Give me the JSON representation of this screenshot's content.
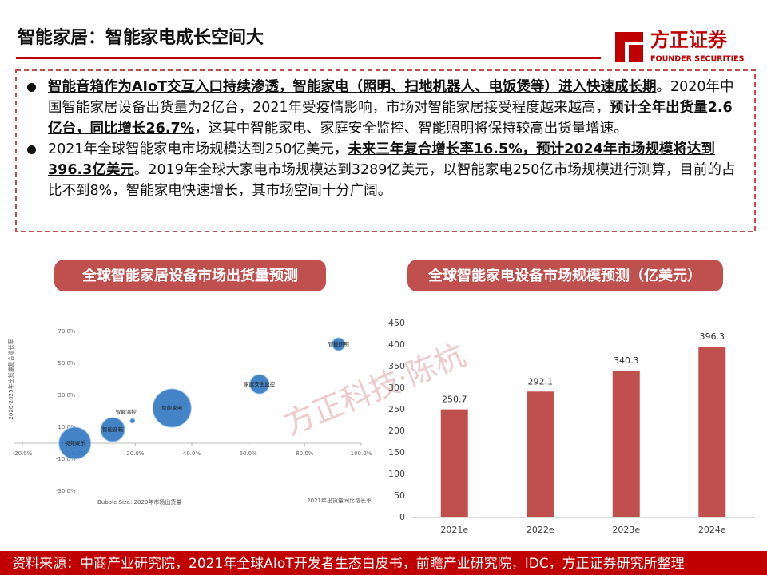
{
  "header": {
    "title": "智能家居：智能家电成长空间大",
    "logo_name": "方正证券",
    "logo_subtitle": "FOUNDER SECURITIES"
  },
  "bullets": [
    {
      "runs": [
        {
          "text": "智能音箱作为AIoT交互入口持续渗透，智能家电（照明、扫地机器人、电饭煲等）进入快速成长期",
          "bold": true
        },
        {
          "text": "。2020年中国智能家居设备出货量为2亿台，2021年受疫情影响，市场对智能家居接受程度越来越高，",
          "bold": false
        },
        {
          "text": "预计全年出货量2.6亿台，同比增长26.7%",
          "bold": true
        },
        {
          "text": "，这其中智能家电、家庭安全监控、智能照明将保持较高出货量增速。",
          "bold": false
        }
      ]
    },
    {
      "runs": [
        {
          "text": "2021年全球智能家电市场规模达到250亿美元，",
          "bold": false
        },
        {
          "text": "未来三年复合增长率16.5%，预计2024年市场规模将达到396.3亿美元",
          "bold": true
        },
        {
          "text": "。2019年全球大家电市场规模达到3289亿美元，以智能家电250亿市场规模进行测算，目前的占比不到8%，智能家电快速增长，其市场空间十分广阔。",
          "bold": false
        }
      ]
    }
  ],
  "watermark": "方正科技·陈杭",
  "source": "资料来源：中商产业研究院，2021年全球AIoT开发者生态白皮书，前瞻产业研究院，IDC，方正证券研究所整理",
  "chart_data": [
    {
      "type": "bubble",
      "title": "全球智能家居设备市场出货量预测",
      "x_label": "2021年出货量同比增长率",
      "y_label": "2020-2025年出货量复合增长率",
      "size_label": "Bubble Size: 2020年市场出货量",
      "color": "#2f75c0",
      "points": [
        {
          "name": "视频娱乐",
          "x": -1.4,
          "y": 0,
          "size": 400
        },
        {
          "name": "智能音箱",
          "x": 12,
          "y": 8.5,
          "size": 225
        },
        {
          "name": "智能温控",
          "x": 19,
          "y": 14,
          "size": 9
        },
        {
          "name": "智能家电",
          "x": 33,
          "y": 22,
          "size": 576
        },
        {
          "name": "家庭安全监控",
          "x": 64,
          "y": 37,
          "size": 144
        },
        {
          "name": "智能照明",
          "x": 92,
          "y": 62,
          "size": 64
        }
      ],
      "xlim": [
        -20,
        100
      ],
      "xticks": [
        {
          "value": -20,
          "label": "-20.0%"
        },
        {
          "value": 0,
          "label": "0.0%"
        },
        {
          "value": 20,
          "label": "20.0%"
        },
        {
          "value": 40,
          "label": "40.0%"
        },
        {
          "value": 60,
          "label": "60.0%"
        },
        {
          "value": 80,
          "label": "80.0%"
        },
        {
          "value": 100,
          "label": "100.0%"
        }
      ],
      "ylim": [
        -30,
        70
      ],
      "yticks": [
        {
          "value": 70,
          "label": "70.0%"
        },
        {
          "value": 50,
          "label": "50.0%"
        },
        {
          "value": 30,
          "label": "30.0%"
        },
        {
          "value": 10,
          "label": "10.0%"
        },
        {
          "value": -10,
          "label": "-10.0%"
        },
        {
          "value": -30,
          "label": "-30.0%"
        }
      ]
    },
    {
      "type": "bar",
      "title": "全球智能家电设备市场规模预测（亿美元）",
      "categories": [
        "2021e",
        "2022e",
        "2023e",
        "2024e"
      ],
      "values": [
        250.7,
        292.1,
        340.3,
        396.3
      ],
      "color": "#c0504d",
      "ylim": [
        0,
        450
      ],
      "yticks": [
        0,
        50,
        100,
        150,
        200,
        250,
        300,
        350,
        400,
        450
      ]
    }
  ]
}
